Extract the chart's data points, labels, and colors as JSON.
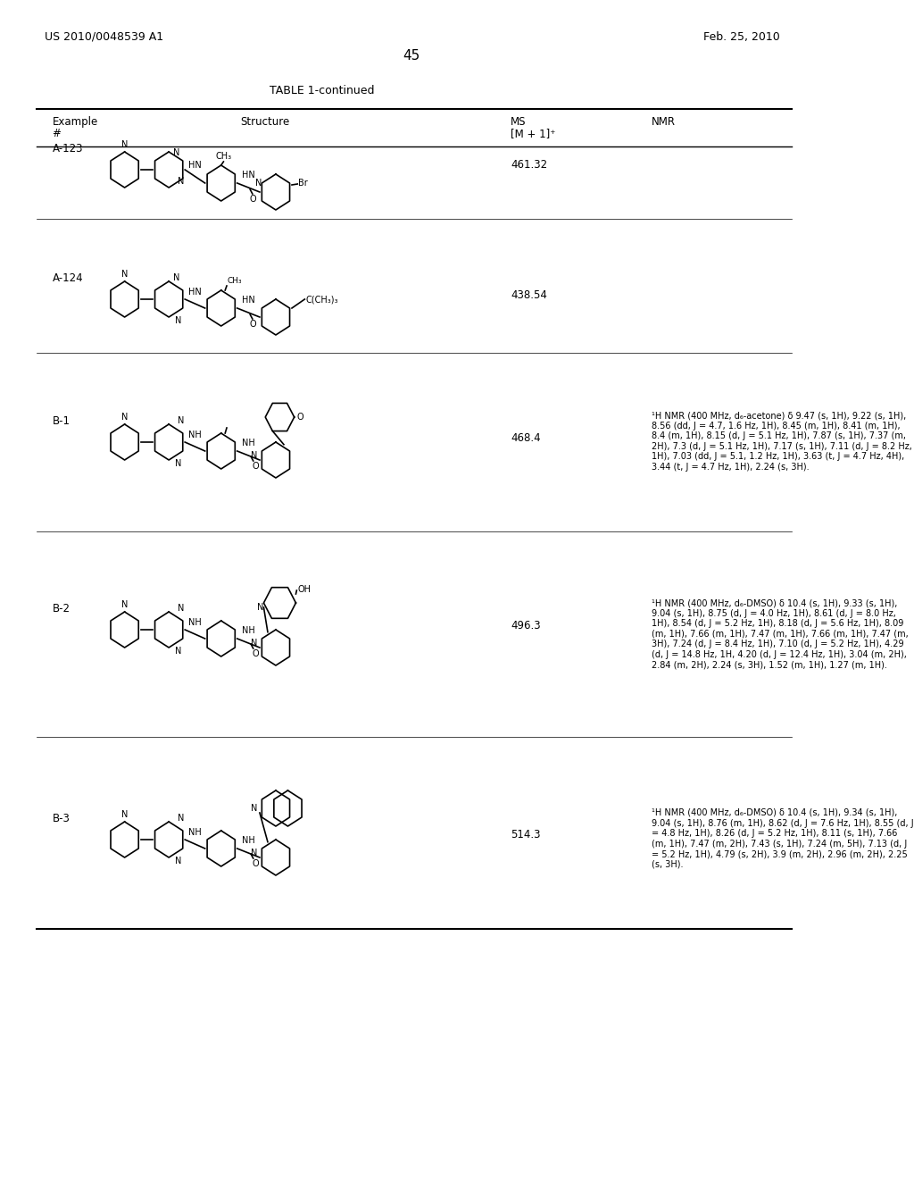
{
  "patent_number": "US 2010/0048539 A1",
  "date": "Feb. 25, 2010",
  "page_number": "45",
  "table_title": "TABLE 1-continued",
  "col_headers": [
    "Example\n#",
    "Structure",
    "MS\n[M + 1]⁺",
    "NMR"
  ],
  "col_header_line1": [
    "Example",
    "",
    "MS",
    ""
  ],
  "col_header_line2": [
    "#",
    "Structure",
    "[M + 1]⁺",
    "NMR"
  ],
  "entries": [
    {
      "id": "A-123",
      "ms": "461.32",
      "nmr": "",
      "structure_desc": "A-123 structure"
    },
    {
      "id": "A-124",
      "ms": "438.54",
      "nmr": "",
      "structure_desc": "A-124 structure"
    },
    {
      "id": "B-1",
      "ms": "468.4",
      "nmr": "¹H NMR (400 MHz, d₆-acetone) δ 9.47 (s, 1H), 9.22 (s, 1H), 8.56 (dd, J = 4.7, 1.6 Hz, 1H), 8.45 (m, 1H), 8.41 (m, 1H), 8.4 (m, 1H), 8.15 (d, J = 5.1 Hz, 1H), 7.87 (s, 1H), 7.37 (m, 2H), 7.3 (d, J = 5.1 Hz, 1H), 7.17 (s, 1H), 7.11 (d, J = 8.2 Hz, 1H), 7.03 (dd, J = 5.1, 1.2 Hz, 1H), 3.63 (t, J = 4.7 Hz, 4H), 3.44 (t, J = 4.7 Hz, 1H), 2.24 (s, 3H).",
      "structure_desc": "B-1 structure"
    },
    {
      "id": "B-2",
      "ms": "496.3",
      "nmr": "¹H NMR (400 MHz, d₆-DMSO) δ 10.4 (s, 1H), 9.33 (s, 1H), 9.04 (s, 1H), 8.75 (d, J = 4.0 Hz, 1H), 8.61 (d, J = 8.0 Hz, 1H), 8.54 (d, J = 5.2 Hz, 1H), 8.18 (d, J = 5.6 Hz, 1H), 8.09 (m, 1H), 7.66 (m, 1H), 7.47 (m, 1H), 7.66 (m, 1H), 7.47 (m, 3H), 7.24 (d, J = 8.4 Hz, 1H), 7.10 (d, J = 5.2 Hz, 1H), 4.29 (d, J = 14.8 Hz, 1H, 4.20 (d, J = 12.4 Hz, 1H), 3.04 (m, 2H), 2.84 (m, 2H), 2.24 (s, 3H), 1.52 (m, 1H), 1.27 (m, 1H).",
      "structure_desc": "B-2 structure"
    },
    {
      "id": "B-3",
      "ms": "514.3",
      "nmr": "¹H NMR (400 MHz, d₆-DMSO) δ 10.4 (s, 1H), 9.34 (s, 1H), 9.04 (s, 1H), 8.76 (m, 1H), 8.62 (d, J = 7.6 Hz, 1H), 8.55 (d, J = 4.8 Hz, 1H), 8.26 (d, J = 5.2 Hz, 1H), 8.11 (s, 1H), 7.66 (m, 1H), 7.47 (m, 2H), 7.43 (s, 1H), 7.24 (m, 5H), 7.13 (d, J = 5.2 Hz, 1H), 4.79 (s, 2H), 3.9 (m, 2H), 2.96 (m, 2H), 2.25 (s, 3H).",
      "structure_desc": "B-3 structure"
    }
  ],
  "background_color": "#ffffff",
  "text_color": "#000000",
  "font_size_header": 9,
  "font_size_body": 8,
  "font_size_patent": 9,
  "font_size_page": 11
}
